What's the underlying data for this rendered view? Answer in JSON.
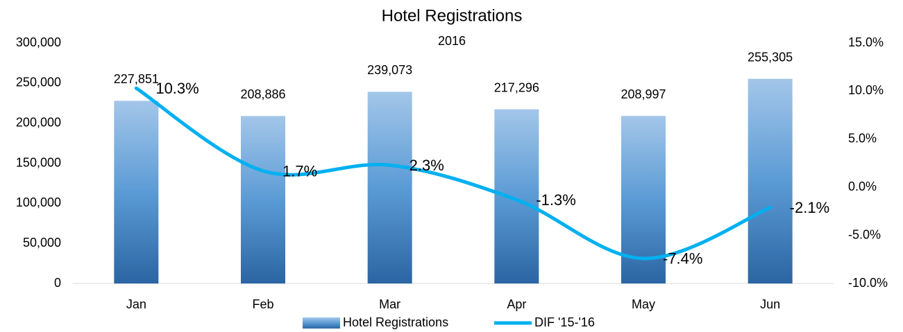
{
  "chart_data": {
    "type": "bar-line",
    "title": "Hotel Registrations",
    "subtitle": "2016",
    "categories": [
      "Jan",
      "Feb",
      "Mar",
      "Apr",
      "May",
      "Jun"
    ],
    "series": [
      {
        "name": "Hotel Registrations",
        "type": "bar",
        "color": "#5b9bd5",
        "values": [
          227851,
          208886,
          239073,
          217296,
          208997,
          255305
        ],
        "value_labels": [
          "227,851",
          "208,886",
          "239,073",
          "217,296",
          "208,997",
          "255,305"
        ]
      },
      {
        "name": "DIF '15-'16",
        "type": "line",
        "axis": "y2",
        "color": "#00b0f0",
        "values": [
          10.3,
          1.7,
          2.3,
          -1.3,
          -7.4,
          -2.1
        ],
        "value_labels": [
          "10.3%",
          "1.7%",
          "2.3%",
          "-1.3%",
          "-7.4%",
          "-2.1%"
        ]
      }
    ],
    "ylim": [
      0,
      300000
    ],
    "yticks": [
      0,
      {
        "value": 50000,
        "label": "50,000"
      },
      {
        "value": 100000,
        "label": "100,000"
      },
      {
        "value": 150000,
        "label": "150,000"
      },
      {
        "value": 200000,
        "label": "200,000"
      },
      {
        "value": 250000,
        "label": "250,000"
      },
      {
        "value": 300000,
        "label": "300,000"
      }
    ],
    "y2lim": [
      -10,
      15
    ],
    "y2ticks": [
      {
        "value": -10,
        "label": "-10.0%"
      },
      {
        "value": -5,
        "label": "-5.0%"
      },
      {
        "value": 0,
        "label": "0.0%"
      },
      {
        "value": 5,
        "label": "5.0%"
      },
      {
        "value": 10,
        "label": "10.0%"
      },
      {
        "value": 15,
        "label": "15.0%"
      }
    ],
    "legend": "bottom"
  }
}
